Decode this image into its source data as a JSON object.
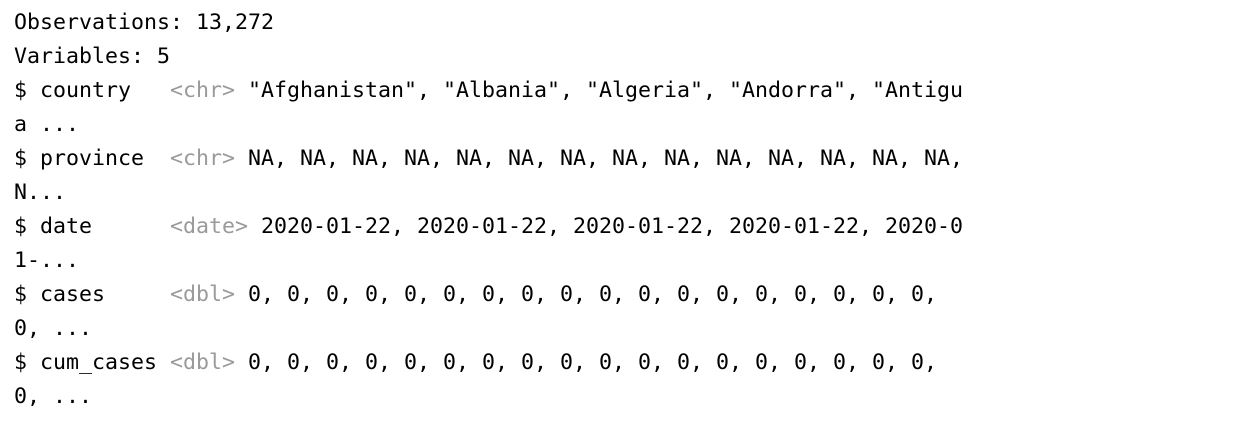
{
  "header": {
    "observations": "Observations: 13,272",
    "variables": "Variables: 5"
  },
  "variables": [
    {
      "name": "$ country   ",
      "type": "<chr>",
      "values": " \"Afghanistan\", \"Albania\", \"Algeria\", \"Andorra\", \"Antigu",
      "wrap": "a ..."
    },
    {
      "name": "$ province  ",
      "type": "<chr>",
      "values": " NA, NA, NA, NA, NA, NA, NA, NA, NA, NA, NA, NA, NA, NA,",
      "wrap": "N..."
    },
    {
      "name": "$ date      ",
      "type": "<date>",
      "values": " 2020-01-22, 2020-01-22, 2020-01-22, 2020-01-22, 2020-0",
      "wrap": "1-..."
    },
    {
      "name": "$ cases     ",
      "type": "<dbl>",
      "values": " 0, 0, 0, 0, 0, 0, 0, 0, 0, 0, 0, 0, 0, 0, 0, 0, 0, 0,",
      "wrap": "0, ..."
    },
    {
      "name": "$ cum_cases ",
      "type": "<dbl>",
      "values": " 0, 0, 0, 0, 0, 0, 0, 0, 0, 0, 0, 0, 0, 0, 0, 0, 0, 0,",
      "wrap": "0, ..."
    }
  ]
}
